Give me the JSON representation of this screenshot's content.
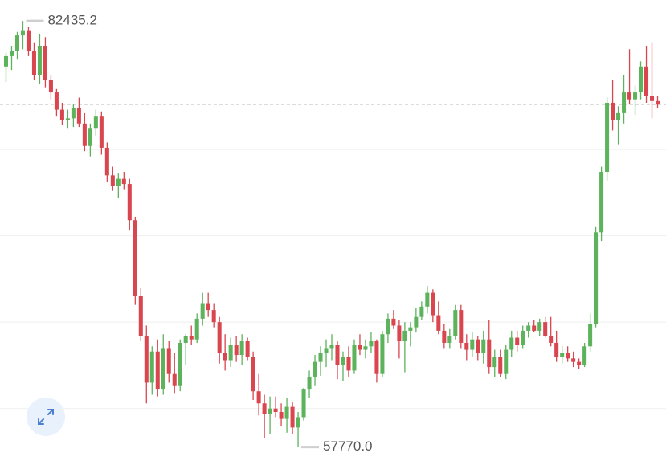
{
  "chart_data": {
    "type": "candlestick",
    "up_color": "#5cb35c",
    "down_color": "#d9464f",
    "ylim": [
      56500,
      83650
    ],
    "yticks": [
      60000,
      65000,
      70000,
      75000,
      80000
    ],
    "grid": true,
    "price_line": 77600,
    "high": {
      "value": 82435.2,
      "label": "82435.2"
    },
    "low": {
      "value": 57770.0,
      "label": "57770.0"
    },
    "candles": [
      [
        79800,
        80600,
        78900,
        80400
      ],
      [
        80400,
        81000,
        79600,
        80700
      ],
      [
        80700,
        81800,
        80200,
        81600
      ],
      [
        81600,
        82435.2,
        80800,
        81900
      ],
      [
        81900,
        82100,
        80400,
        80700
      ],
      [
        80700,
        81200,
        79000,
        79300
      ],
      [
        79300,
        81700,
        78800,
        81000
      ],
      [
        81000,
        81500,
        78600,
        79000
      ],
      [
        79000,
        79300,
        77900,
        78300
      ],
      [
        78300,
        78500,
        76900,
        77300
      ],
      [
        77300,
        77700,
        76400,
        76700
      ],
      [
        76700,
        77300,
        76200,
        76800
      ],
      [
        76800,
        77600,
        76300,
        77400
      ],
      [
        77400,
        78000,
        76300,
        76500
      ],
      [
        76500,
        77100,
        74900,
        75200
      ],
      [
        75200,
        76500,
        74600,
        76200
      ],
      [
        76200,
        77300,
        75800,
        76900
      ],
      [
        76900,
        77200,
        74700,
        75100
      ],
      [
        75100,
        75400,
        73100,
        73500
      ],
      [
        73500,
        74000,
        72600,
        72900
      ],
      [
        72900,
        73600,
        72200,
        73300
      ],
      [
        73300,
        73700,
        72700,
        73000
      ],
      [
        73000,
        73300,
        70300,
        70900
      ],
      [
        70900,
        71100,
        66000,
        66500
      ],
      [
        66500,
        67000,
        63900,
        64200
      ],
      [
        64200,
        64800,
        60300,
        61500
      ],
      [
        61500,
        63600,
        60800,
        63300
      ],
      [
        63300,
        64000,
        60700,
        61100
      ],
      [
        61100,
        64300,
        60800,
        63500
      ],
      [
        63500,
        63900,
        61500,
        62000
      ],
      [
        62000,
        63200,
        60900,
        61300
      ],
      [
        61300,
        64000,
        61000,
        63800
      ],
      [
        63800,
        64300,
        62500,
        64200
      ],
      [
        64200,
        64800,
        63700,
        64000
      ],
      [
        64000,
        65500,
        63800,
        65200
      ],
      [
        65200,
        66700,
        64800,
        66100
      ],
      [
        66100,
        66700,
        65300,
        65700
      ],
      [
        65700,
        66100,
        64700,
        65000
      ],
      [
        65000,
        65300,
        62600,
        63200
      ],
      [
        63200,
        64300,
        62200,
        62800
      ],
      [
        62800,
        64100,
        62400,
        63700
      ],
      [
        63700,
        64200,
        62700,
        63100
      ],
      [
        63100,
        64300,
        62500,
        63900
      ],
      [
        63900,
        64100,
        62800,
        63000
      ],
      [
        63000,
        63300,
        60500,
        61000
      ],
      [
        61000,
        62000,
        59600,
        60300
      ],
      [
        60300,
        60800,
        58300,
        59700
      ],
      [
        59700,
        60700,
        58500,
        60000
      ],
      [
        60000,
        60700,
        59500,
        59800
      ],
      [
        59800,
        60300,
        59000,
        59400
      ],
      [
        59400,
        60600,
        58600,
        60100
      ],
      [
        60100,
        60400,
        58500,
        58900
      ],
      [
        58900,
        59800,
        57770.0,
        59500
      ],
      [
        59500,
        61200,
        59300,
        61100
      ],
      [
        61100,
        62200,
        60600,
        61800
      ],
      [
        61800,
        63100,
        61300,
        62700
      ],
      [
        62700,
        63600,
        61900,
        63200
      ],
      [
        63200,
        64000,
        62400,
        63500
      ],
      [
        63500,
        64300,
        62800,
        63700
      ],
      [
        63700,
        63900,
        61700,
        62500
      ],
      [
        62500,
        63300,
        61600,
        63000
      ],
      [
        63000,
        63600,
        61800,
        62200
      ],
      [
        62200,
        64000,
        62000,
        63700
      ],
      [
        63700,
        64300,
        63100,
        63400
      ],
      [
        63400,
        64000,
        62900,
        63600
      ],
      [
        63600,
        64400,
        63200,
        63900
      ],
      [
        63900,
        64000,
        61500,
        62000
      ],
      [
        62000,
        64500,
        61800,
        64300
      ],
      [
        64300,
        65500,
        63800,
        65200
      ],
      [
        65200,
        65700,
        64600,
        64800
      ],
      [
        64800,
        65100,
        62900,
        63900
      ],
      [
        63900,
        65000,
        62100,
        64500
      ],
      [
        64500,
        65000,
        63600,
        64700
      ],
      [
        64700,
        65800,
        64400,
        65300
      ],
      [
        65300,
        66200,
        65100,
        65900
      ],
      [
        65900,
        67100,
        65500,
        66700
      ],
      [
        66700,
        66900,
        65000,
        65400
      ],
      [
        65400,
        66200,
        64300,
        64500
      ],
      [
        64500,
        64900,
        63500,
        63800
      ],
      [
        63800,
        64600,
        63500,
        64200
      ],
      [
        64200,
        66000,
        64000,
        65700
      ],
      [
        65700,
        66000,
        63500,
        63800
      ],
      [
        63800,
        64300,
        62800,
        63400
      ],
      [
        63400,
        64400,
        63000,
        64000
      ],
      [
        64000,
        64200,
        62800,
        63200
      ],
      [
        63200,
        64500,
        62600,
        64000
      ],
      [
        64000,
        65100,
        62000,
        62400
      ],
      [
        62400,
        63400,
        61800,
        63000
      ],
      [
        63000,
        63400,
        61800,
        62000
      ],
      [
        62000,
        63700,
        61700,
        63400
      ],
      [
        63400,
        64500,
        63000,
        64100
      ],
      [
        64100,
        64500,
        63300,
        63700
      ],
      [
        63700,
        64800,
        63500,
        64500
      ],
      [
        64500,
        65000,
        64100,
        64800
      ],
      [
        64800,
        65100,
        64400,
        64500
      ],
      [
        64500,
        65200,
        64200,
        65000
      ],
      [
        65000,
        65300,
        64100,
        64200
      ],
      [
        64200,
        65300,
        63600,
        63800
      ],
      [
        63800,
        64500,
        62700,
        63000
      ],
      [
        63000,
        63600,
        62600,
        63200
      ],
      [
        63200,
        63600,
        62700,
        62900
      ],
      [
        62900,
        63300,
        62400,
        62700
      ],
      [
        62700,
        62900,
        62300,
        62500
      ],
      [
        62500,
        63800,
        62400,
        63600
      ],
      [
        63600,
        65500,
        63300,
        64900
      ],
      [
        64900,
        70500,
        64700,
        70200
      ],
      [
        70200,
        74000,
        69700,
        73700
      ],
      [
        73700,
        78000,
        73200,
        77700
      ],
      [
        77700,
        79000,
        76100,
        76700
      ],
      [
        76700,
        77500,
        75300,
        77100
      ],
      [
        77100,
        79300,
        76500,
        78300
      ],
      [
        78300,
        80800,
        77600,
        77900
      ],
      [
        77900,
        78700,
        77000,
        78300
      ],
      [
        78300,
        80100,
        77900,
        79800
      ],
      [
        79800,
        81000,
        77700,
        78100
      ],
      [
        78100,
        81200,
        76800,
        77800
      ],
      [
        77800,
        78100,
        77400,
        77600
      ]
    ]
  }
}
